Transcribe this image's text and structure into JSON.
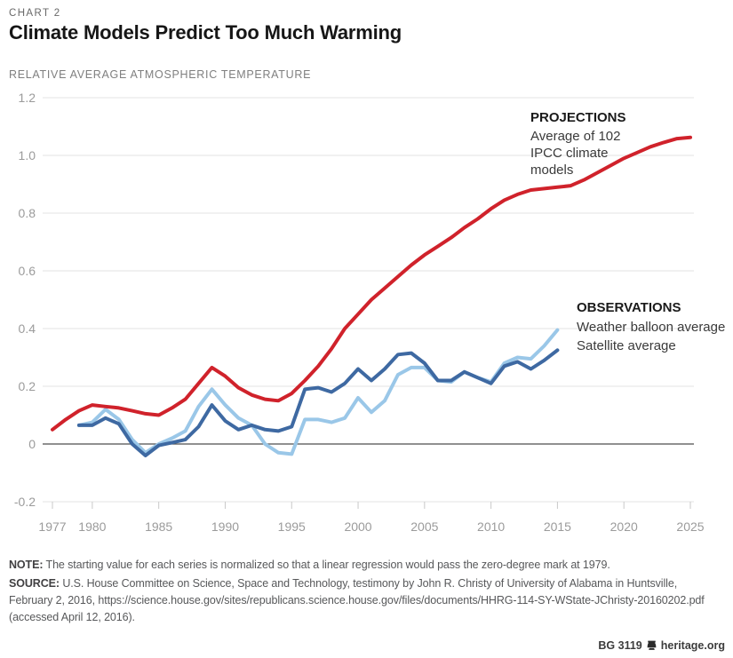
{
  "header": {
    "kicker": "CHART 2",
    "title": "Climate Models Predict Too Much Warming",
    "subtitle": "RELATIVE AVERAGE ATMOSPHERIC TEMPERATURE"
  },
  "colors": {
    "projections_red": "#d0222b",
    "balloon_light_blue": "#9ac7e8",
    "satellite_dark_blue": "#3e69a2",
    "grid_gray": "#e3e3e3",
    "zero_axis_gray": "#4d4d4d",
    "tick_gray": "#c9c9c9",
    "tick_label_gray": "#9b9b9b"
  },
  "chart_data": {
    "type": "line",
    "title": "Climate Models Predict Too Much Warming",
    "ylabel": "RELATIVE AVERAGE ATMOSPHERIC TEMPERATURE",
    "xlabel": "",
    "grid": true,
    "xlim": [
      1977,
      2025
    ],
    "ylim": [
      -0.2,
      1.2
    ],
    "x_ticks": [
      1977,
      1980,
      1985,
      1990,
      1995,
      2000,
      2005,
      2010,
      2015,
      2020,
      2025
    ],
    "x_tick_labels": [
      "1977",
      "1980",
      "1985",
      "1990",
      "1995",
      "2000",
      "2005",
      "2010",
      "2015",
      "2020",
      "2025"
    ],
    "y_ticks": [
      1.2,
      1.0,
      0.8,
      0.6,
      0.4,
      0.2,
      0,
      -0.2
    ],
    "y_tick_labels": [
      "1.2",
      "1.0",
      "0.8",
      "0.6",
      "0.4",
      "0.2",
      "0",
      "-0.2"
    ],
    "annotations": {
      "projections": {
        "title": "PROJECTIONS",
        "line1": "Average of 102",
        "line2": "IPCC climate",
        "line3": "models"
      },
      "observations": {
        "title": "OBSERVATIONS",
        "line1": "Weather balloon average",
        "line2": "Satellite average"
      }
    },
    "series": [
      {
        "key": "projections",
        "name": "Projections: average of 102 IPCC climate models",
        "color": "#d0222b",
        "x": [
          1977,
          1978,
          1979,
          1980,
          1981,
          1982,
          1983,
          1984,
          1985,
          1986,
          1987,
          1988,
          1989,
          1990,
          1991,
          1992,
          1993,
          1994,
          1995,
          1996,
          1997,
          1998,
          1999,
          2000,
          2001,
          2002,
          2003,
          2004,
          2005,
          2006,
          2007,
          2008,
          2009,
          2010,
          2011,
          2012,
          2013,
          2014,
          2015,
          2016,
          2017,
          2018,
          2019,
          2020,
          2021,
          2022,
          2023,
          2024,
          2025
        ],
        "values": [
          0.05,
          0.085,
          0.115,
          0.135,
          0.13,
          0.125,
          0.115,
          0.105,
          0.1,
          0.125,
          0.155,
          0.21,
          0.265,
          0.235,
          0.195,
          0.17,
          0.155,
          0.15,
          0.175,
          0.22,
          0.27,
          0.33,
          0.4,
          0.45,
          0.5,
          0.54,
          0.58,
          0.62,
          0.655,
          0.685,
          0.715,
          0.75,
          0.78,
          0.815,
          0.845,
          0.865,
          0.88,
          0.885,
          0.89,
          0.895,
          0.915,
          0.94,
          0.965,
          0.99,
          1.01,
          1.03,
          1.045,
          1.058,
          1.062
        ]
      },
      {
        "key": "satellite",
        "name": "Satellite average",
        "color": "#3e69a2",
        "x": [
          1979,
          1980,
          1981,
          1982,
          1983,
          1984,
          1985,
          1986,
          1987,
          1988,
          1989,
          1990,
          1991,
          1992,
          1993,
          1994,
          1995,
          1996,
          1997,
          1998,
          1999,
          2000,
          2001,
          2002,
          2003,
          2004,
          2005,
          2006,
          2007,
          2008,
          2009,
          2010,
          2011,
          2012,
          2013,
          2014,
          2015
        ],
        "values": [
          0.065,
          0.065,
          0.09,
          0.07,
          0.0,
          -0.04,
          -0.005,
          0.005,
          0.015,
          0.06,
          0.135,
          0.08,
          0.05,
          0.065,
          0.05,
          0.045,
          0.06,
          0.19,
          0.195,
          0.18,
          0.21,
          0.26,
          0.22,
          0.26,
          0.31,
          0.315,
          0.28,
          0.22,
          0.22,
          0.25,
          0.23,
          0.21,
          0.27,
          0.285,
          0.26,
          0.29,
          0.325
        ]
      },
      {
        "key": "balloon",
        "name": "Weather balloon average",
        "color": "#9ac7e8",
        "x": [
          1979,
          1980,
          1981,
          1982,
          1983,
          1984,
          1985,
          1986,
          1987,
          1988,
          1989,
          1990,
          1991,
          1992,
          1993,
          1994,
          1995,
          1996,
          1997,
          1998,
          1999,
          2000,
          2001,
          2002,
          2003,
          2004,
          2005,
          2006,
          2007,
          2008,
          2009,
          2010,
          2011,
          2012,
          2013,
          2014,
          2015
        ],
        "values": [
          0.065,
          0.075,
          0.12,
          0.085,
          0.015,
          -0.03,
          0.0,
          0.02,
          0.045,
          0.13,
          0.19,
          0.135,
          0.09,
          0.065,
          0.0,
          -0.03,
          -0.035,
          0.085,
          0.085,
          0.075,
          0.09,
          0.16,
          0.11,
          0.15,
          0.24,
          0.265,
          0.265,
          0.22,
          0.215,
          0.25,
          0.23,
          0.215,
          0.28,
          0.3,
          0.295,
          0.34,
          0.395
        ]
      }
    ]
  },
  "footer": {
    "note_label": "NOTE:",
    "note_text": "The starting value for each series is normalized so that a linear regression would pass the zero-degree mark at 1979.",
    "source_label": "SOURCE:",
    "source_line1": "U.S. House Committee on Science, Space and Technology, testimony by John R. Christy of University of Alabama in Huntsville,",
    "source_line2": "February 2, 2016, https://science.house.gov/sites/republicans.science.house.gov/files/documents/HHRG-114-SY-WState-JChristy-20160202.pdf",
    "source_line3": "(accessed April 12, 2016).",
    "credit_id": "BG 3119",
    "credit_site": "heritage.org"
  }
}
